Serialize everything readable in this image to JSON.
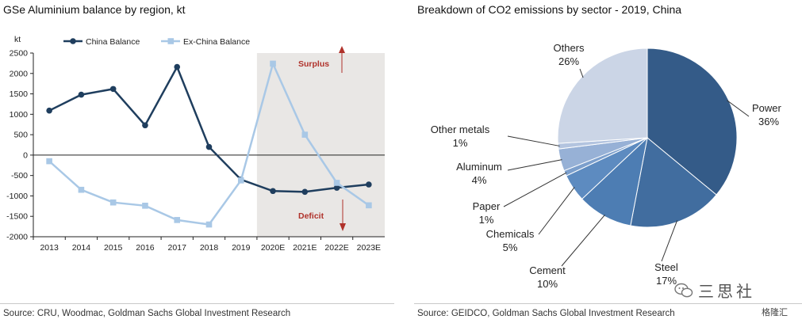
{
  "left_panel": {
    "source": "Source: CRU, Woodmac, Goldman Sachs Global Investment Research"
  },
  "right_panel": {
    "source": "Source: GEIDCO, Goldman Sachs Global Investment Research"
  },
  "watermark": {
    "text": "三思社",
    "sub": "格隆汇"
  },
  "colors": {
    "china": "#1f3e5e",
    "ex_china": "#a9c8e6",
    "shade": "#e9e7e5",
    "arrow": "#b0322b",
    "annotation": "#b0322b"
  },
  "chart_data": [
    {
      "type": "line",
      "title": "GSe Aluminium balance by region, kt",
      "ylabel": "kt",
      "categories": [
        "2013",
        "2014",
        "2015",
        "2016",
        "2017",
        "2018",
        "2019",
        "2020E",
        "2021E",
        "2022E",
        "2023E"
      ],
      "series": [
        {
          "name": "China Balance",
          "values": [
            1090,
            1480,
            1620,
            730,
            2160,
            200,
            -600,
            -880,
            -900,
            -800,
            -720
          ]
        },
        {
          "name": "Ex-China Balance",
          "values": [
            -150,
            -850,
            -1160,
            -1240,
            -1590,
            -1700,
            -620,
            2240,
            500,
            -680,
            -1230
          ]
        }
      ],
      "ylim": [
        -2000,
        2500
      ],
      "yticks": [
        2500,
        2000,
        1500,
        1000,
        500,
        0,
        -500,
        -1000,
        -1500,
        -2000
      ],
      "forecast_shaded_from": "2020E",
      "annotations": [
        "Surplus",
        "Deficit"
      ],
      "legend": "top",
      "grid": false
    },
    {
      "type": "pie",
      "title": "Breakdown of CO2 emissions by sector - 2019, China",
      "slices": [
        {
          "label": "Power",
          "value": 36,
          "display": "36%",
          "color": "#345b88"
        },
        {
          "label": "Steel",
          "value": 17,
          "display": "17%",
          "color": "#416d9f"
        },
        {
          "label": "Cement",
          "value": 10,
          "display": "10%",
          "color": "#4d7db3"
        },
        {
          "label": "Chemicals",
          "value": 5,
          "display": "5%",
          "color": "#5d8bc0"
        },
        {
          "label": "Paper",
          "value": 1,
          "display": "1%",
          "color": "#7c9fcc"
        },
        {
          "label": "Aluminum",
          "value": 4,
          "display": "4%",
          "color": "#97b1d6"
        },
        {
          "label": "Other metals",
          "value": 1,
          "display": "1%",
          "color": "#b3c4df"
        },
        {
          "label": "Others",
          "value": 26,
          "display": "26%",
          "color": "#cbd5e6"
        }
      ]
    }
  ]
}
